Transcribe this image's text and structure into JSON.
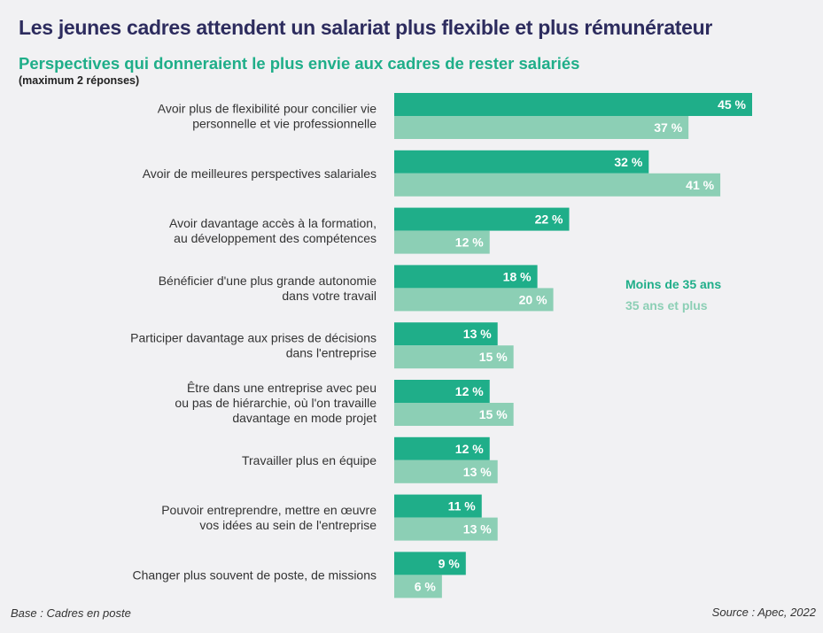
{
  "title": "Les jeunes cadres attendent un salariat plus flexible et plus rémunérateur",
  "subtitle": "Perspectives qui donneraient le plus envie aux cadres de rester salariés",
  "note": "(maximum 2 réponses)",
  "base": "Base : Cadres en poste",
  "source": "Source : Apec, 2022",
  "colors": {
    "series_a": "#1fae89",
    "series_b": "#8ccfb5",
    "title": "#2d2c5e"
  },
  "chart_data": {
    "type": "bar",
    "orientation": "horizontal",
    "unit": "%",
    "legend_position": "right",
    "grid": false,
    "xlim": [
      0,
      45
    ],
    "categories": [
      [
        "Avoir plus de flexibilité pour concilier vie",
        "personnelle et vie professionnelle"
      ],
      [
        "Avoir de meilleures perspectives salariales"
      ],
      [
        "Avoir davantage accès à la formation,",
        "au développement des compétences"
      ],
      [
        "Bénéficier d'une plus grande autonomie",
        "dans votre travail"
      ],
      [
        "Participer davantage aux prises de décisions",
        "dans l'entreprise"
      ],
      [
        "Être dans une entreprise avec peu",
        "ou pas de hiérarchie, où l'on travaille",
        "davantage en mode projet"
      ],
      [
        "Travailler plus en équipe"
      ],
      [
        "Pouvoir entreprendre, mettre en œuvre",
        "vos idées au sein de l'entreprise"
      ],
      [
        "Changer plus souvent de poste, de missions"
      ]
    ],
    "series": [
      {
        "name": "Moins de 35 ans",
        "values": [
          45,
          32,
          22,
          18,
          13,
          12,
          12,
          11,
          9
        ]
      },
      {
        "name": "35 ans et plus",
        "values": [
          37,
          41,
          12,
          20,
          15,
          15,
          13,
          13,
          6
        ]
      }
    ]
  }
}
